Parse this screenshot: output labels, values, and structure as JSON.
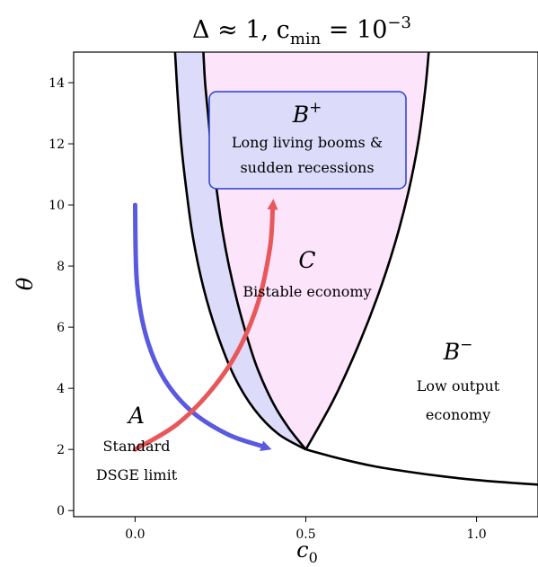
{
  "chart_data": {
    "type": "line",
    "title": {
      "main": "Δ ≈ 1, c",
      "sub": "min",
      "mid": " = 10",
      "sup": "−3"
    },
    "xlabel": {
      "main": "c",
      "sub": "0"
    },
    "ylabel": "θ",
    "xlim": [
      -0.18,
      1.18
    ],
    "ylim": [
      -0.2,
      15
    ],
    "xticks": [
      {
        "value": 0.0,
        "label": "0.0"
      },
      {
        "value": 0.5,
        "label": "0.5"
      },
      {
        "value": 1.0,
        "label": "1.0"
      }
    ],
    "yticks": [
      {
        "value": 0,
        "label": "0"
      },
      {
        "value": 2,
        "label": "2"
      },
      {
        "value": 4,
        "label": "4"
      },
      {
        "value": 6,
        "label": "6"
      },
      {
        "value": 8,
        "label": "8"
      },
      {
        "value": 10,
        "label": "10"
      },
      {
        "value": 12,
        "label": "12"
      },
      {
        "value": 14,
        "label": "14"
      }
    ],
    "curves": {
      "outer_left": {
        "x": [
          0.5,
          0.42,
          0.35,
          0.29,
          0.24,
          0.2,
          0.17,
          0.15,
          0.135,
          0.125,
          0.117
        ],
        "y": [
          2.0,
          2.5,
          3.3,
          4.4,
          5.8,
          7.3,
          8.9,
          10.5,
          12.0,
          13.5,
          15.0
        ]
      },
      "inner_left": {
        "x": [
          0.5,
          0.45,
          0.405,
          0.36,
          0.33,
          0.3,
          0.275,
          0.255,
          0.24,
          0.225,
          0.215,
          0.205,
          0.2
        ],
        "y": [
          2.0,
          2.7,
          3.5,
          4.6,
          5.6,
          6.8,
          8.0,
          9.2,
          10.4,
          11.6,
          12.8,
          14.0,
          15.0
        ]
      },
      "right_branch": {
        "x": [
          0.5,
          0.58,
          0.65,
          0.71,
          0.76,
          0.8,
          0.83,
          0.85,
          0.86
        ],
        "y": [
          2.0,
          3.6,
          5.3,
          7.0,
          8.7,
          10.4,
          12.1,
          13.8,
          15.0
        ]
      },
      "lower_branch": {
        "x": [
          0.5,
          0.6,
          0.7,
          0.8,
          0.9,
          1.0,
          1.1,
          1.18
        ],
        "y": [
          2.0,
          1.7,
          1.45,
          1.27,
          1.12,
          1.0,
          0.91,
          0.85
        ]
      }
    },
    "regions": [
      {
        "id": "B_plus_band",
        "color": "#dcdcfa",
        "description_of_fill": "between outer_left and inner_left"
      },
      {
        "id": "C_region",
        "color": "#fce4fb",
        "description_of_fill": "between inner_left and right_branch"
      }
    ],
    "arrows": [
      {
        "id": "blue-arrow",
        "color": "#5a5ae0",
        "x": [
          0.0,
          0.005,
          0.03,
          0.08,
          0.16,
          0.27,
          0.4
        ],
        "y": [
          10.0,
          7.5,
          5.8,
          4.4,
          3.3,
          2.5,
          2.0
        ]
      },
      {
        "id": "red-arrow",
        "color": "#e8585a",
        "x": [
          0.0,
          0.12,
          0.22,
          0.3,
          0.36,
          0.395,
          0.405
        ],
        "y": [
          2.0,
          2.8,
          3.9,
          5.2,
          6.8,
          8.6,
          10.2
        ]
      }
    ]
  },
  "annotations": {
    "B_plus": {
      "letter": "B",
      "sup": "+",
      "line1": "Long living booms &",
      "line2": "sudden recessions",
      "box_color": "#dcdcfa",
      "box_edge": "#2b3fd0"
    },
    "C": {
      "letter": "C",
      "line1": "Bistable economy"
    },
    "B_minus": {
      "letter": "B",
      "sup": "−",
      "line1": "Low output",
      "line2": "economy"
    },
    "A": {
      "letter": "A",
      "line1": "Standard",
      "line2": "DSGE limit"
    }
  }
}
